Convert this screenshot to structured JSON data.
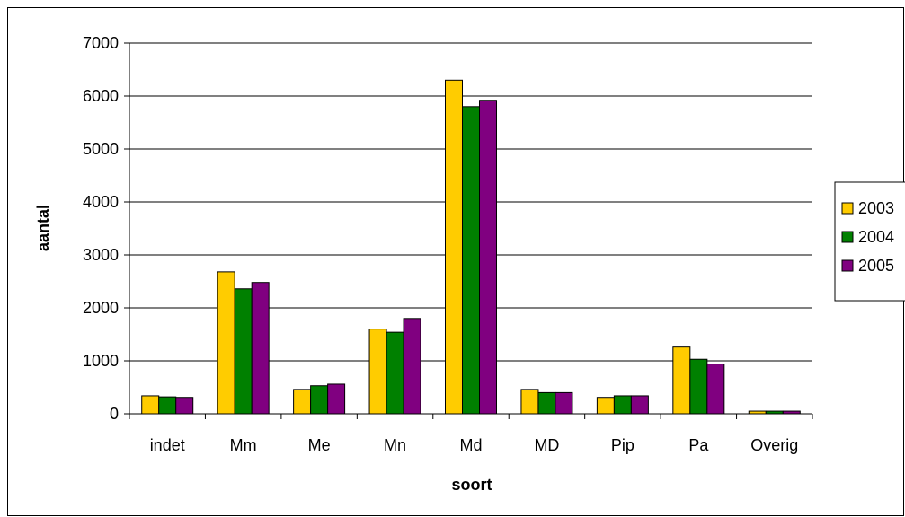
{
  "chart_data": {
    "type": "bar",
    "title": "",
    "xlabel": "soort",
    "ylabel": "aantal",
    "categories": [
      "indet",
      "Mm",
      "Me",
      "Mn",
      "Md",
      "MD",
      "Pip",
      "Pa",
      "Overig"
    ],
    "series": [
      {
        "name": "2003",
        "color": "#FFCC00",
        "values": [
          340,
          2680,
          460,
          1600,
          6300,
          460,
          310,
          1260,
          50
        ]
      },
      {
        "name": "2004",
        "color": "#008000",
        "values": [
          320,
          2360,
          530,
          1540,
          5800,
          400,
          340,
          1030,
          50
        ]
      },
      {
        "name": "2005",
        "color": "#800080",
        "values": [
          310,
          2480,
          560,
          1800,
          5920,
          400,
          340,
          940,
          50
        ]
      }
    ],
    "ylim": [
      0,
      7000
    ],
    "yticks": [
      0,
      1000,
      2000,
      3000,
      4000,
      5000,
      6000,
      7000
    ],
    "grid": true,
    "legend": "right"
  }
}
